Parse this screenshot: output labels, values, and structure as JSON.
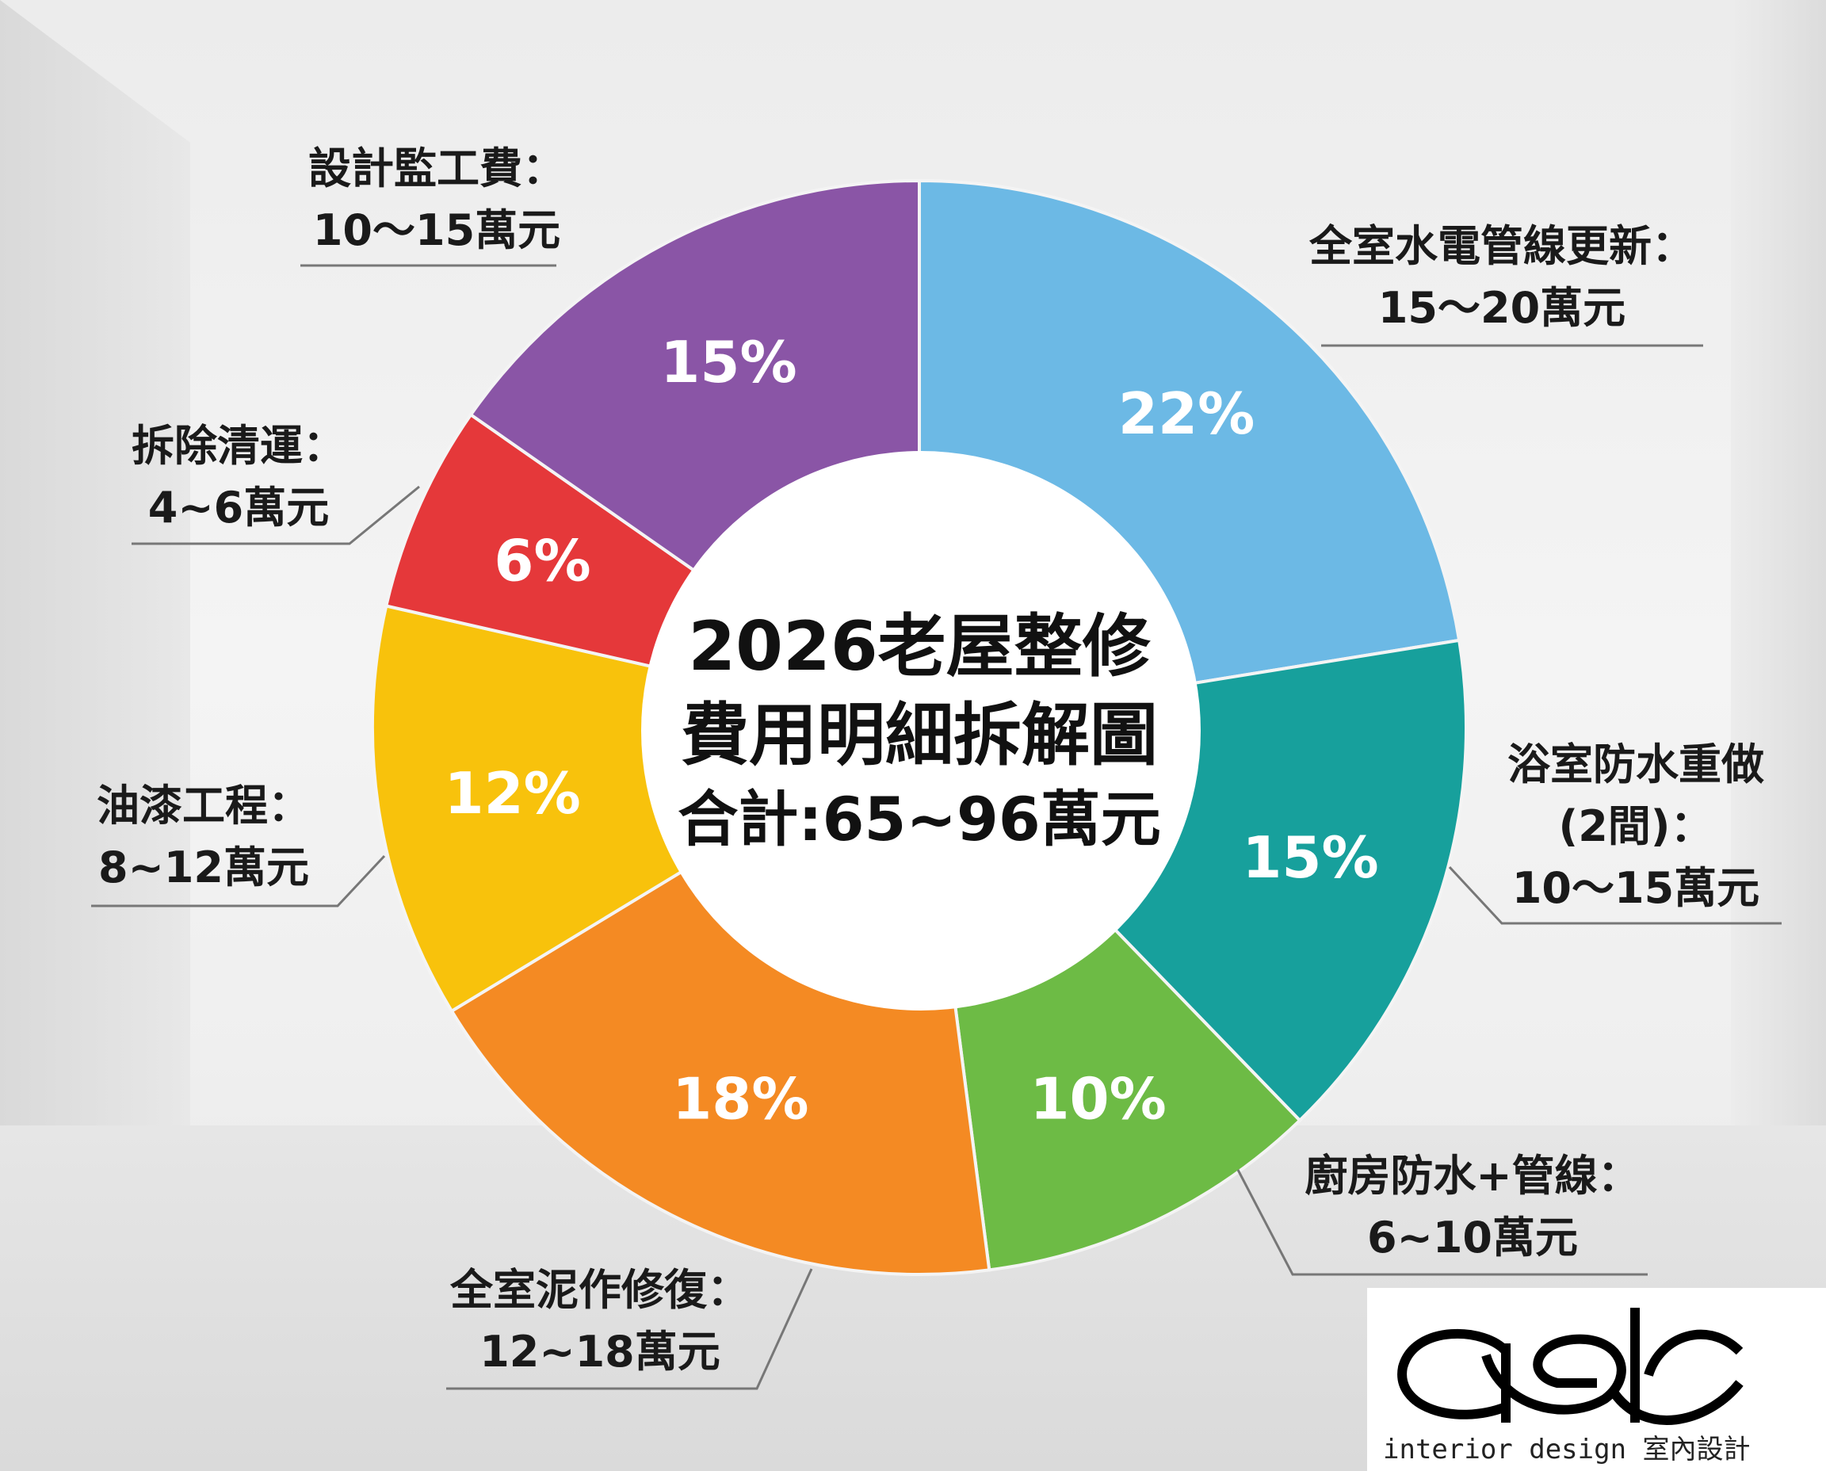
{
  "chart_data": {
    "type": "pie",
    "donut": true,
    "title": "2026老屋整修",
    "subtitle": "費用明細拆解圖",
    "total_label": "合計:65~96萬元",
    "categories": [
      "全室水電管線更新",
      "浴室防水重做(2間)",
      "廚房防水+管線",
      "全室泥作修復",
      "油漆工程",
      "拆除清運",
      "設計監工費"
    ],
    "values": [
      22,
      15,
      10,
      18,
      12,
      6,
      15
    ],
    "value_labels": [
      "22%",
      "15%",
      "10%",
      "18%",
      "12%",
      "6%",
      "15%"
    ],
    "colors": [
      "#6cb9e5",
      "#17a09c",
      "#6dbb45",
      "#f48a23",
      "#f8c20c",
      "#e5383a",
      "#8a55a6"
    ],
    "start": "top",
    "direction": "clockwise",
    "annotations": [
      {
        "lines": [
          "全室水電管線更新：",
          "15～20萬元"
        ]
      },
      {
        "lines": [
          "浴室防水重做",
          "(2間)：",
          "10～15萬元"
        ]
      },
      {
        "lines": [
          "廚房防水+管線：",
          "6~10萬元"
        ]
      },
      {
        "lines": [
          "全室泥作修復：",
          "12~18萬元"
        ]
      },
      {
        "lines": [
          "油漆工程：",
          "8~12萬元"
        ]
      },
      {
        "lines": [
          "拆除清運：",
          "4~6萬元"
        ]
      },
      {
        "lines": [
          "設計監工費：",
          "10～15萬元"
        ]
      }
    ]
  },
  "logo": {
    "mark": "adc",
    "tagline": "interior design 室內設計"
  }
}
